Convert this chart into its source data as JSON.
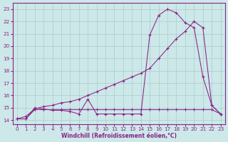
{
  "background_color": "#cde8e8",
  "grid_color": "#aacccc",
  "line_color": "#882288",
  "xlabel": "Windchill (Refroidissement éolien,°C)",
  "yticks": [
    14,
    15,
    16,
    17,
    18,
    19,
    20,
    21,
    22,
    23
  ],
  "xticks": [
    0,
    1,
    2,
    3,
    4,
    5,
    6,
    7,
    8,
    9,
    10,
    11,
    12,
    13,
    14,
    15,
    16,
    17,
    18,
    19,
    20,
    21,
    22,
    23
  ],
  "xlim": [
    -0.5,
    23.5
  ],
  "ylim": [
    13.65,
    23.5
  ],
  "line_peaked_x": [
    0,
    1,
    2,
    3,
    4,
    5,
    6,
    7,
    8,
    9,
    10,
    11,
    12,
    13,
    14,
    15,
    16,
    17,
    18,
    19,
    20,
    21,
    22,
    23
  ],
  "line_peaked_y": [
    14.1,
    14.1,
    15.0,
    14.9,
    14.8,
    14.8,
    14.7,
    14.5,
    15.7,
    14.5,
    14.5,
    14.5,
    14.5,
    14.5,
    14.5,
    20.9,
    22.5,
    23.0,
    22.7,
    21.9,
    21.5,
    17.5,
    15.2,
    14.5
  ],
  "line_diagonal_x": [
    0,
    1,
    2,
    3,
    4,
    5,
    6,
    7,
    8,
    9,
    10,
    11,
    12,
    13,
    14,
    15,
    16,
    17,
    18,
    19,
    20,
    21,
    22,
    23
  ],
  "line_diagonal_y": [
    14.1,
    14.3,
    14.9,
    15.1,
    15.2,
    15.4,
    15.5,
    15.7,
    16.0,
    16.3,
    16.6,
    16.9,
    17.2,
    17.5,
    17.8,
    18.2,
    19.0,
    19.8,
    20.6,
    21.2,
    22.0,
    21.5,
    15.2,
    14.5
  ],
  "line_flat_x": [
    0,
    1,
    2,
    3,
    4,
    5,
    6,
    7,
    8,
    9,
    10,
    11,
    12,
    13,
    14,
    15,
    16,
    17,
    18,
    19,
    20,
    21,
    22,
    23
  ],
  "line_flat_y": [
    14.1,
    14.1,
    14.85,
    14.85,
    14.85,
    14.85,
    14.85,
    14.85,
    14.85,
    14.85,
    14.85,
    14.85,
    14.85,
    14.85,
    14.85,
    14.85,
    14.85,
    14.85,
    14.85,
    14.85,
    14.85,
    14.85,
    14.85,
    14.5
  ]
}
